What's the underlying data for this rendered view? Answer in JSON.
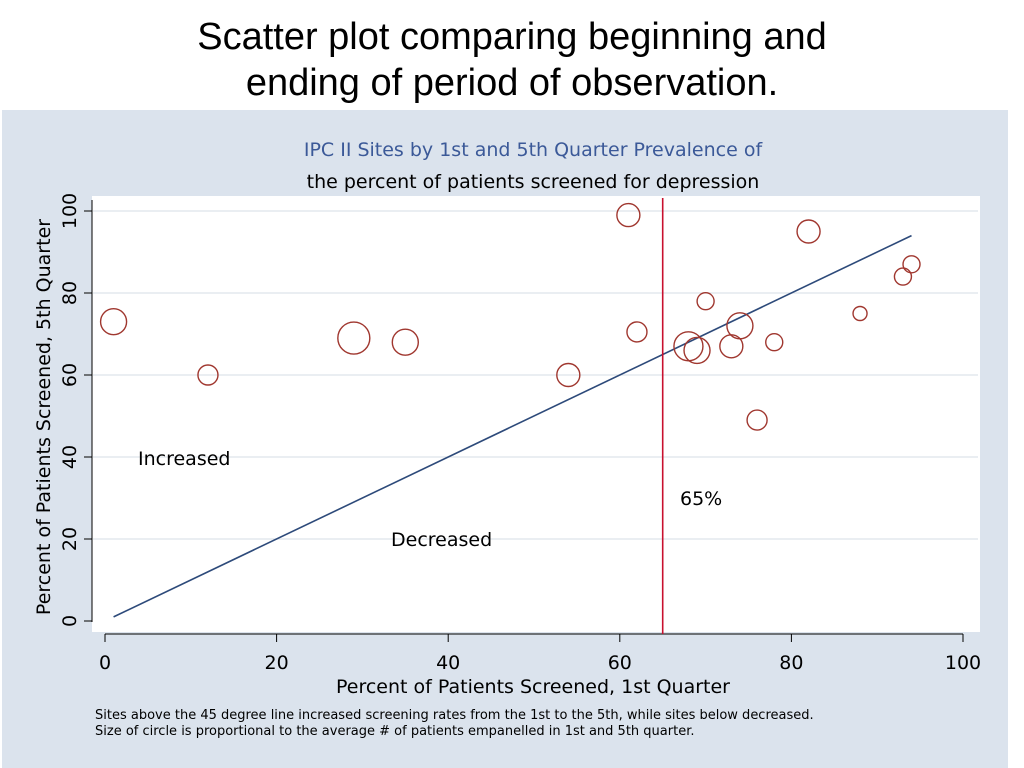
{
  "slide": {
    "title_line1": "Scatter plot comparing beginning and",
    "title_line2": "ending of period of observation."
  },
  "chart_data": {
    "type": "scatter",
    "title": "IPC II Sites by 1st and 5th Quarter Prevalence of",
    "subtitle": "the percent of patients screened for depression",
    "xlabel": "Percent of Patients Screened, 1st Quarter",
    "ylabel": "Percent of Patients Screened, 5th Quarter",
    "xlim": [
      0,
      100
    ],
    "ylim": [
      0,
      100
    ],
    "xticks": [
      0,
      20,
      40,
      60,
      80,
      100
    ],
    "yticks": [
      0,
      20,
      40,
      60,
      80,
      100
    ],
    "grid": true,
    "marker_color": "#a0372f",
    "line_color": "#2d4a7a",
    "vline_color": "#c8102e",
    "title_color": "#3b5998",
    "points": [
      {
        "x": 1,
        "y": 73,
        "size": 3
      },
      {
        "x": 12,
        "y": 60,
        "size": 2
      },
      {
        "x": 29,
        "y": 69,
        "size": 4
      },
      {
        "x": 35,
        "y": 68,
        "size": 3
      },
      {
        "x": 54,
        "y": 60,
        "size": 2.5
      },
      {
        "x": 61,
        "y": 99,
        "size": 2.5
      },
      {
        "x": 62,
        "y": 70.5,
        "size": 2
      },
      {
        "x": 68,
        "y": 67,
        "size": 3.5
      },
      {
        "x": 69,
        "y": 66,
        "size": 3
      },
      {
        "x": 70,
        "y": 78,
        "size": 1.5
      },
      {
        "x": 73,
        "y": 67,
        "size": 2.5
      },
      {
        "x": 74,
        "y": 72,
        "size": 3
      },
      {
        "x": 76,
        "y": 49,
        "size": 2
      },
      {
        "x": 78,
        "y": 68,
        "size": 1.5
      },
      {
        "x": 82,
        "y": 95,
        "size": 2.5
      },
      {
        "x": 88,
        "y": 75,
        "size": 1
      },
      {
        "x": 93,
        "y": 84,
        "size": 1.5
      },
      {
        "x": 94,
        "y": 87,
        "size": 1.5
      }
    ],
    "reference_line": {
      "x1": 1,
      "y1": 1,
      "x2": 94,
      "y2": 94
    },
    "vline": {
      "x": 65,
      "label": "65%"
    },
    "annotations": {
      "increased": "Increased",
      "decreased": "Decreased"
    },
    "notes": [
      "Sites above the 45 degree line increased screening rates from the 1st to the 5th, while sites below decreased.",
      "Size of circle is proportional to the average # of patients empanelled in 1st and 5th quarter."
    ]
  }
}
